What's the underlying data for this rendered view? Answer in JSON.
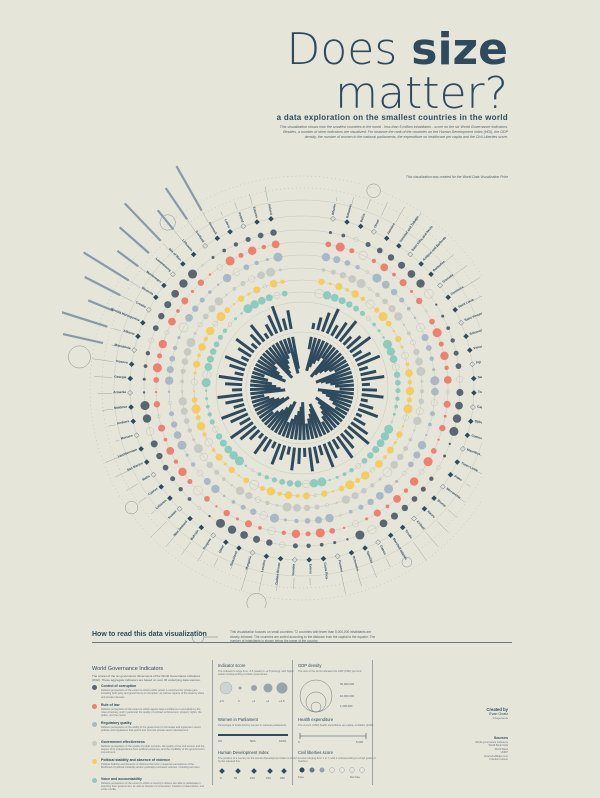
{
  "title": {
    "part1": "Does ",
    "part2": "size",
    "part3": "matter?"
  },
  "subtitle": "a data exploration on the smallest countries in the world",
  "intro": "This visualization shows how the smallest countries in the world - less than 5 million inhabitants - score on the six World Governance Indicators. Besides, a number of other indicators are visualized. For instance the rank of the countries on the Human Development Index (HDI), the GDP density, the number of women in the national parliaments, the expenditure on healthcare per capita and the Civil Liberties score.",
  "prize_note": "This visualization was created for the World Data Visualization Prize",
  "legend": {
    "heading": "How to read this data visualization",
    "intro": "This visualization focuses on small countries: 72 countries with fewer than 5,000,000 inhabitants are closely followed. The countries are sorted according to the distance from the capital to the equator. The number of inhabitants is shown below the name of the country.",
    "wgi": {
      "title": "World Governance Indicators",
      "desc": "The scores of the six governance dimensions of the World Governance Indicators (WGI). These aggregate indicators are based on over 30 underlying data sources.",
      "items": [
        {
          "name": "Control of corruption",
          "text": "Reflects perceptions of the extent to which public power is exercised for private gain, including both petty and grand forms of corruption, as well as capture of the state by elites and private interests.",
          "color": "#5a6770"
        },
        {
          "name": "Rule of law",
          "text": "Reflects perceptions of the extent to which agents have confidence in and abide by the rules of society, and in particular the quality of contract enforcement, property rights, the police, and the courts.",
          "color": "#ef7f6e"
        },
        {
          "name": "Regulatory quality",
          "text": "Reflects perceptions of the ability of the government to formulate and implement sound policies and regulations that permit and promote private sector development.",
          "color": "#a9b8c4"
        },
        {
          "name": "Government effectiveness",
          "text": "Reflects perceptions of the quality of public services, the quality of the civil service and the degree of its independence from political pressures, and the credibility of the government's commitment.",
          "color": "#c7c9c3"
        },
        {
          "name": "Political stability and absence of violence",
          "text": "Political Stability and Absence of Violence/Terrorism measures perceptions of the likelihood of political instability and/or politically-motivated violence, including terrorism.",
          "color": "#f5cc5e"
        },
        {
          "name": "Voice and accountability",
          "text": "Reflects perceptions of the extent to which a country's citizens are able to participate in selecting their government, as well as freedom of expression, freedom of association, and a free media.",
          "color": "#8ccbbd"
        }
      ]
    },
    "indicator": {
      "title": "Indicator score",
      "desc": "The indicator's range from -2.5 (weak) to +2.5 (strong), with higher values corresponding to better governance.",
      "scale": [
        "-2.5",
        "0",
        "+1",
        "+2",
        "+2.5"
      ]
    },
    "women": {
      "title": "Women in Parliament",
      "desc": "Percentage of seats held by women in national parliaments.",
      "scale": [
        "0%",
        "50%",
        "100%"
      ]
    },
    "hdi": {
      "title": "Human Development Index",
      "desc": "The position of a country on the Human Development Index is shown by the squared line.",
      "scale": [
        "0",
        "50",
        "100",
        "150",
        "189"
      ]
    },
    "gdp": {
      "title": "GDP density",
      "desc": "The size of the circle indicates the GDP (USD) per km2.",
      "scale": [
        "50,000,000",
        "10,000,000",
        "1,000,000"
      ]
    },
    "health": {
      "title": "Health expenditure",
      "desc": "The current (USD) health expenditure per capita, in dollars (2016).",
      "scale": [
        "0",
        "5,000"
      ]
    },
    "civil": {
      "title": "Civil liberties score",
      "desc": "A score ranging from 1 to 7, with 1 corresponding to a high grade of freedom.",
      "scale": [
        "Free",
        "Not free"
      ]
    }
  },
  "credits": {
    "heading": "Created by",
    "name": "Evan Gnatz",
    "sub": "Infogenesis"
  },
  "sources": {
    "heading": "Sources",
    "items": [
      "World governance indicators",
      "World Bank Data",
      "World Bank",
      "UNDP",
      "ChartsAndMaps.com",
      "Freedom House"
    ]
  },
  "countries_left": [
    "Iceland",
    "Estonia",
    "Ireland",
    "Latvia",
    "Denmark",
    "Scotland",
    "Lithuania",
    "Isle of Man",
    "Luxembourg",
    "Montenegro",
    "Slovenia",
    "Croatia",
    "Bosnia Herzegovina",
    "Albania",
    "Macedonia",
    "Kosovo",
    "Georgia",
    "Armenia",
    "Moldova",
    "Andorra",
    "Monaco",
    "Liechtenstein",
    "San Marino",
    "Malta",
    "Cyprus",
    "Lebanon",
    "Kuwait",
    "New Zealand",
    "Bahrain",
    "Uruguay",
    "Qatar",
    "Swaziland",
    "Mongolia",
    "Lesotho"
  ],
  "countries_right": [
    "Bhutan",
    "Bahamas",
    "Belize",
    "Oman",
    "Jamaica",
    "Trinidad and Tobago",
    "Saint Kitts and Nevis",
    "Antigua and Barbuda",
    "Barbados",
    "Grenada",
    "Dominica",
    "Saint Lucia",
    "Saint Vincent",
    "Solomon Islands",
    "Vanuatu",
    "Fiji",
    "Samoa",
    "Tonga",
    "Cape Verde",
    "Djibouti",
    "Comoros",
    "Mauritius",
    "Timor-Leste",
    "Palau",
    "Micronesia",
    "Brunei",
    "Nauru",
    "Kiribati",
    "Tuvalu",
    "Marshall Islands",
    "Gabon",
    "Namibia",
    "Botswana",
    "Panama",
    "Costa Rica",
    "Eritrea",
    "Gambia",
    "Guinea-Bissau"
  ]
}
